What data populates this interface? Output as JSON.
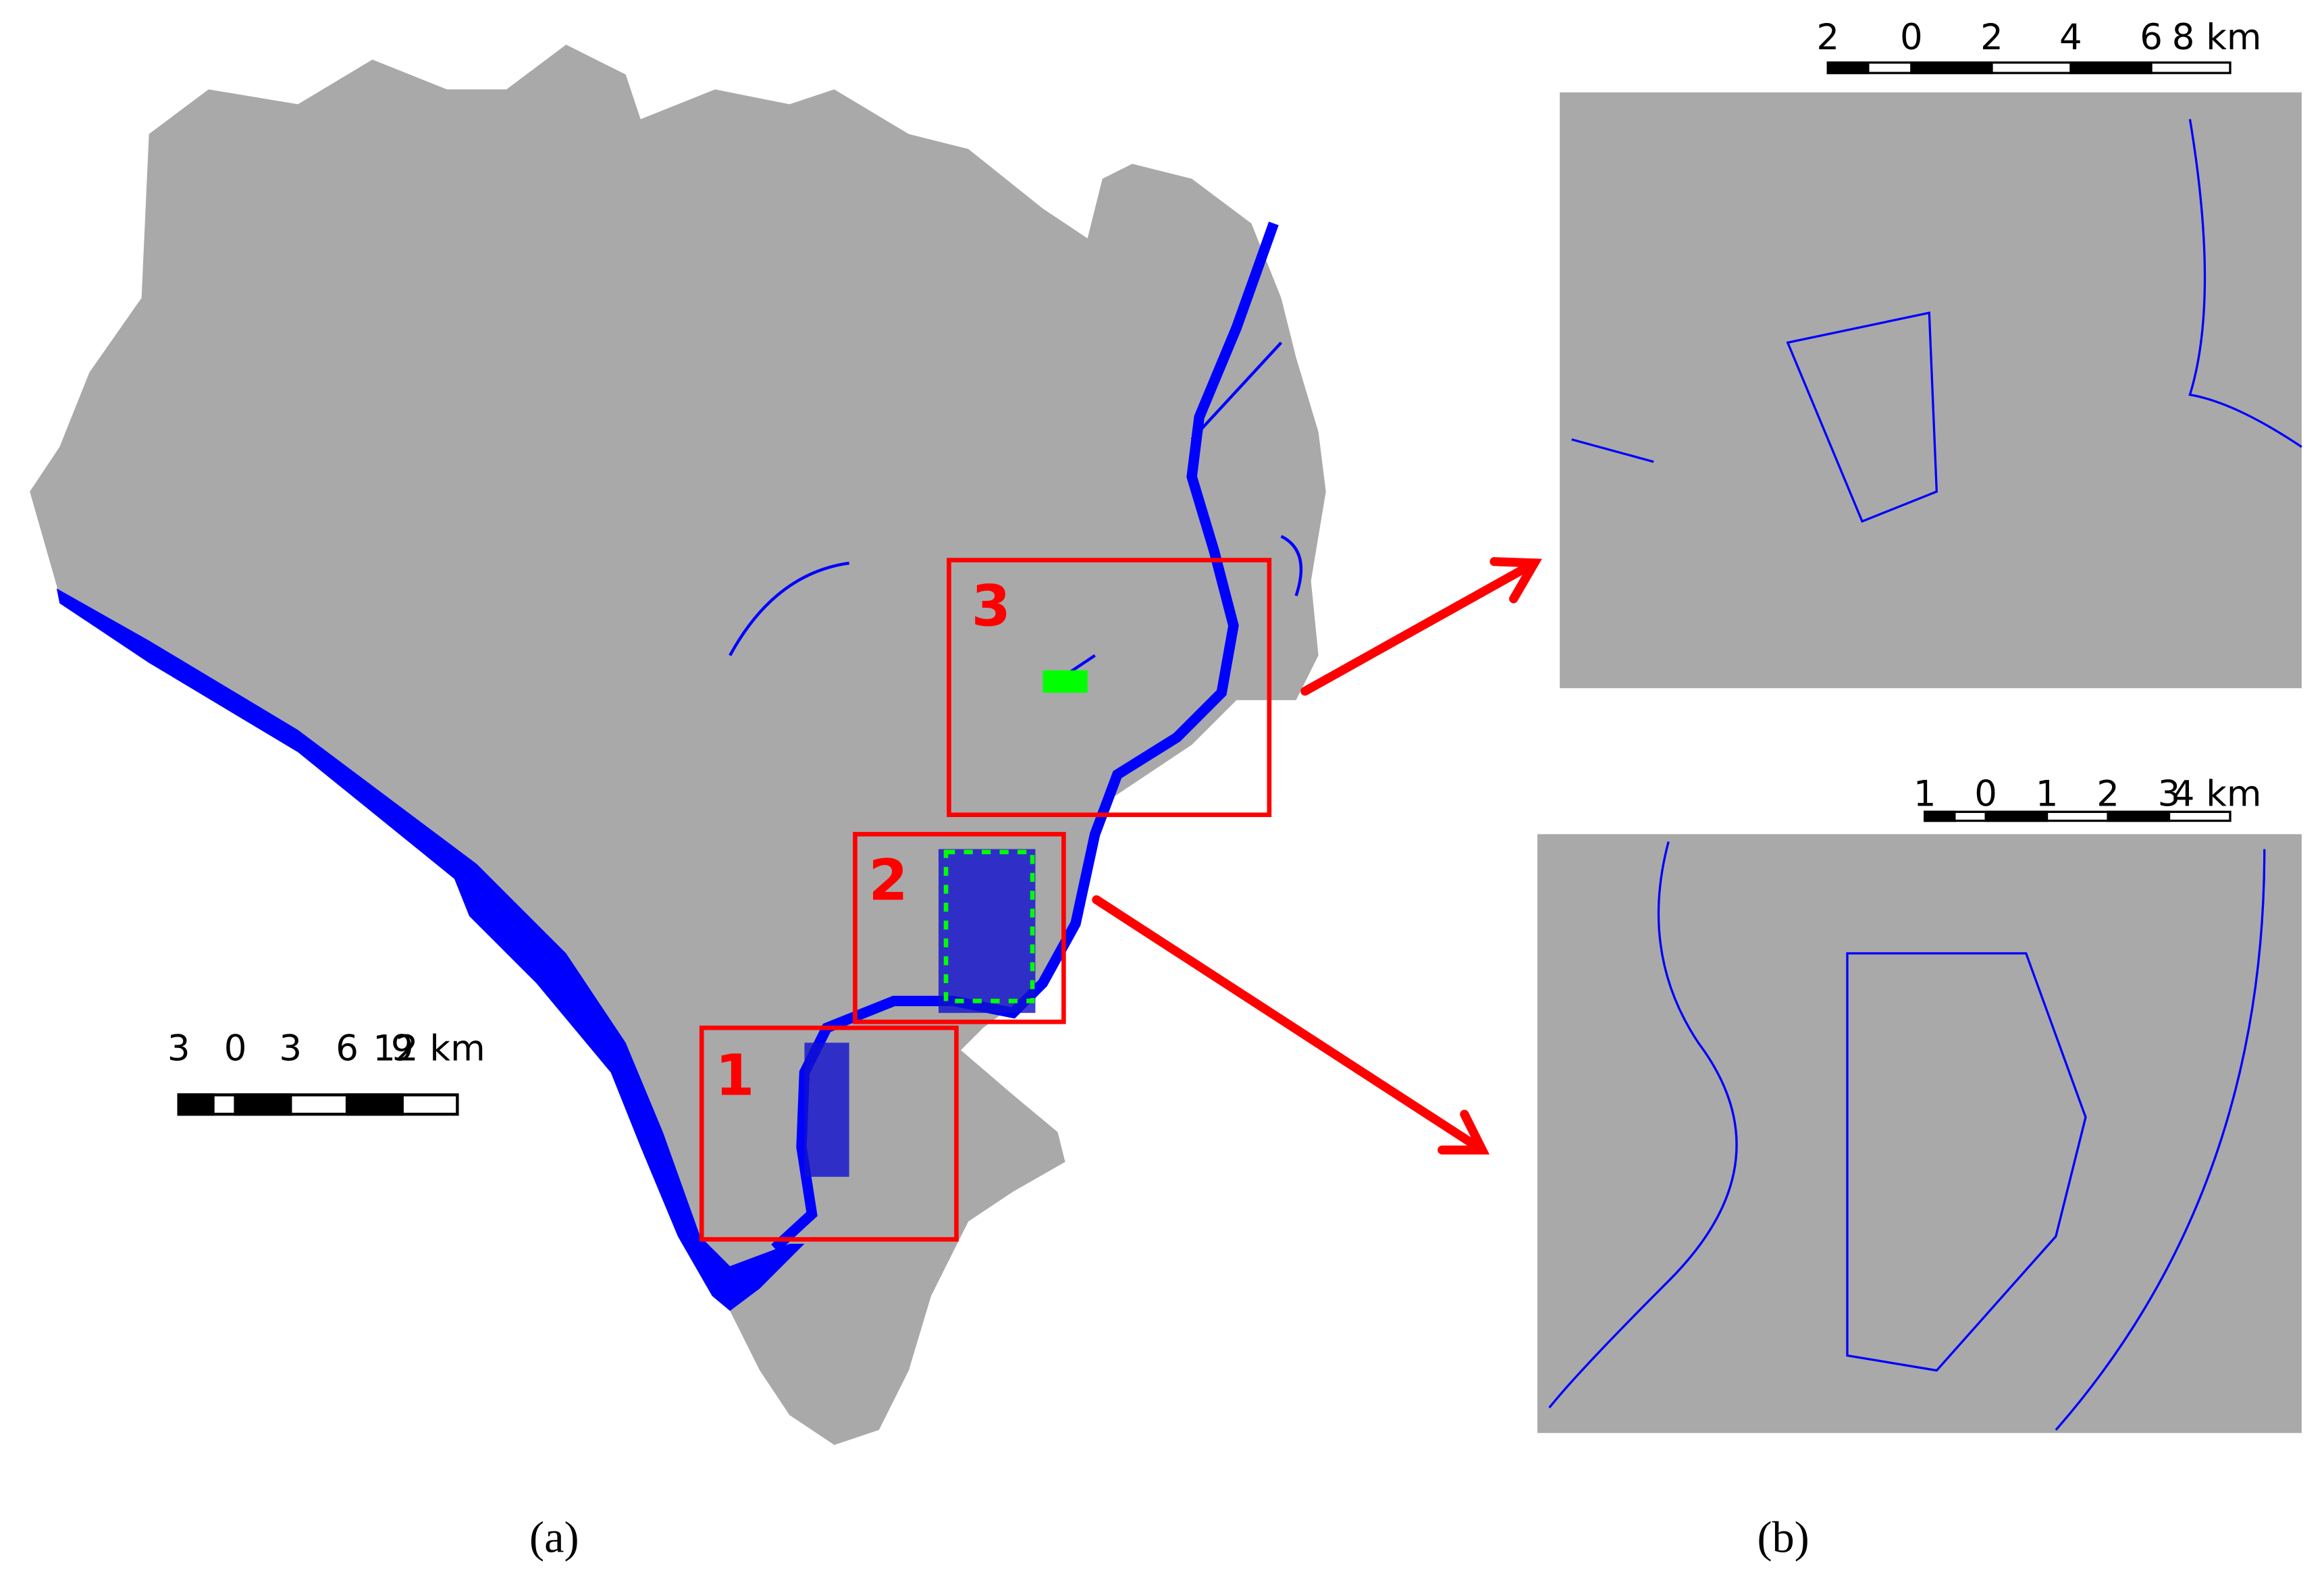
{
  "panel_a": {
    "caption": "(a)",
    "boxes": [
      {
        "label": "1"
      },
      {
        "label": "2"
      },
      {
        "label": "3"
      }
    ],
    "scale_bar": {
      "labels": [
        "3",
        "0",
        "3",
        "6",
        "9",
        "12 km"
      ]
    }
  },
  "panel_b": {
    "caption": "(b)",
    "top_scale_bar": {
      "labels": [
        "2",
        "0",
        "2",
        "4",
        "6",
        "8 km"
      ]
    },
    "bottom_scale_bar": {
      "labels": [
        "1",
        "0",
        "1",
        "2",
        "3",
        "4 km"
      ]
    }
  }
}
